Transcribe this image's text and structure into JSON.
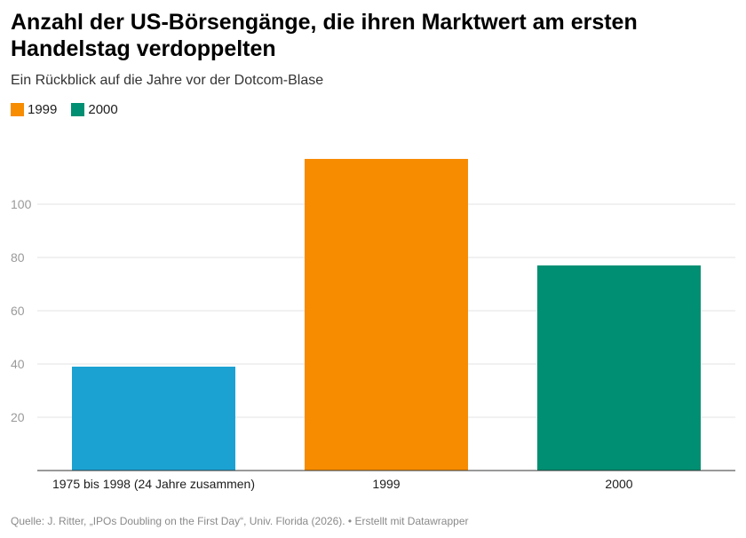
{
  "title": "Anzahl der US-Börsengänge, die ihren Marktwert am ersten Handelstag verdoppelten",
  "subtitle": "Ein Rückblick auf die Jahre vor der Dotcom-Blase",
  "legend": [
    {
      "label": "1999",
      "color": "#f78c00"
    },
    {
      "label": "2000",
      "color": "#008f72"
    }
  ],
  "source": "Quelle: J. Ritter, „IPOs Doubling on the First Day“, Univ. Florida (2026). • Erstellt mit Datawrapper",
  "chart_data": {
    "type": "bar",
    "categories": [
      "1975 bis 1998 (24 Jahre zusammen)",
      "1999",
      "2000"
    ],
    "values": [
      39,
      117,
      77
    ],
    "colors": [
      "#1ba2d2",
      "#f78c00",
      "#008f72"
    ],
    "yticks": [
      20,
      40,
      60,
      80,
      100
    ],
    "ylim": [
      0,
      120
    ],
    "grid": true,
    "legend_position": "top-left"
  }
}
